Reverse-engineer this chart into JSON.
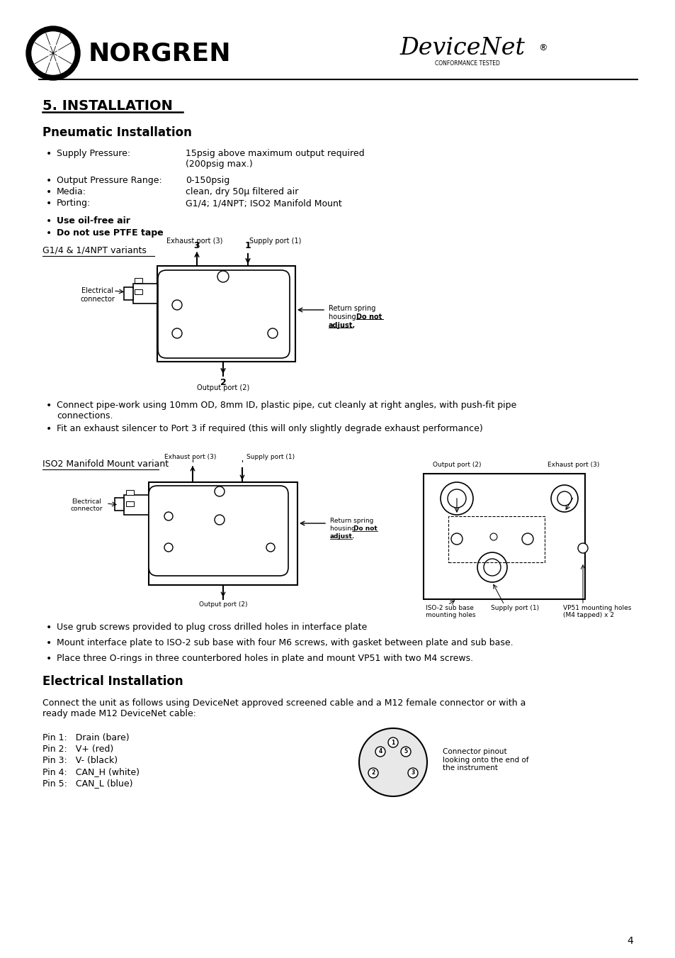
{
  "page_bg": "#ffffff",
  "text_color": "#000000",
  "title_section": "5. INSTALLATION",
  "subtitle_pneumatic": "Pneumatic Installation",
  "subtitle_electrical": "Electrical Installation",
  "bullet_items_pneumatic": [
    [
      "Supply Pressure:",
      "15psig above maximum output required\n(200psig max.)"
    ],
    [
      "Output Pressure Range:",
      "0-150psig"
    ],
    [
      "Media:",
      "clean, dry 50μ filtered air"
    ],
    [
      "Porting:",
      "G1/4; 1/4NPT; ISO2 Manifold Mount"
    ],
    [
      "Use oil-free air",
      ""
    ],
    [
      "Do not use PTFE tape",
      ""
    ]
  ],
  "g14_label": "G1/4 & 1/4NPT variants",
  "iso2_label": "ISO2 Manifold Mount variant",
  "bullet_items_iso2": [
    "Use grub screws provided to plug cross drilled holes in interface plate",
    "Mount interface plate to ISO-2 sub base with four M6 screws, with gasket between plate and sub base.",
    "Place three O-rings in three counterbored holes in plate and mount VP51 with two M4 screws."
  ],
  "bullet_items_connect": [
    "Connect pipe-work using 10mm OD, 8mm ID, plastic pipe, cut cleanly at right angles, with push-fit pipe\nconnections.",
    "Fit an exhaust silencer to Port 3 if required (this will only slightly degrade exhaust performance)"
  ],
  "electrical_intro": "Connect the unit as follows using DeviceNet approved screened cable and a M12 female connector or with a\nready made M12 DeviceNet cable:",
  "pin_labels": [
    "Pin 1:   Drain (bare)",
    "Pin 2:   V+ (red)",
    "Pin 3:   V- (black)",
    "Pin 4:   CAN_H (white)",
    "Pin 5:   CAN_L (blue)"
  ],
  "connector_note": "Connector pinout\nlooking onto the end of\nthe instrument",
  "page_number": "4",
  "bullet_y_offsets": [
    0,
    38,
    54,
    70,
    95,
    112
  ]
}
